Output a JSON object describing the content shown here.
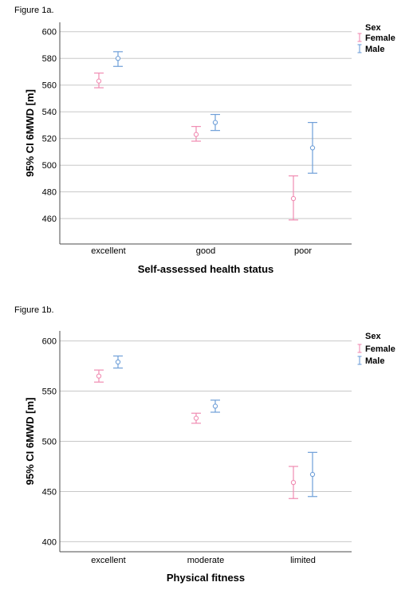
{
  "chart_data": [
    {
      "type": "errorbar",
      "figure_label": "Figure 1a.",
      "xlabel": "Self-assessed health status",
      "ylabel": "95% CI 6MWD [m]",
      "ylim": [
        441,
        607
      ],
      "yticks": [
        460,
        480,
        500,
        520,
        540,
        560,
        580,
        600
      ],
      "categories": [
        "excellent",
        "good",
        "poor"
      ],
      "legend_title": "Sex",
      "legend_position": "right",
      "grid": true,
      "series": [
        {
          "name": "Female",
          "color": "#f08cb2",
          "mean": [
            563,
            523,
            475
          ],
          "lower": [
            558,
            518,
            459
          ],
          "upper": [
            569,
            529,
            492
          ]
        },
        {
          "name": "Male",
          "color": "#6f9fd8",
          "mean": [
            580,
            532,
            513
          ],
          "lower": [
            574,
            526,
            494
          ],
          "upper": [
            585,
            538,
            532
          ]
        }
      ]
    },
    {
      "type": "errorbar",
      "figure_label": "Figure 1b.",
      "xlabel": "Physical fitness",
      "ylabel": "95% CI 6MWD [m]",
      "ylim": [
        390,
        610
      ],
      "yticks": [
        400,
        450,
        500,
        550,
        600
      ],
      "categories": [
        "excellent",
        "moderate",
        "limited"
      ],
      "legend_title": "Sex",
      "legend_position": "right",
      "grid": true,
      "series": [
        {
          "name": "Female",
          "color": "#f08cb2",
          "mean": [
            565,
            523,
            459
          ],
          "lower": [
            559,
            518,
            443
          ],
          "upper": [
            571,
            528,
            475
          ]
        },
        {
          "name": "Male",
          "color": "#6f9fd8",
          "mean": [
            579,
            535,
            467
          ],
          "lower": [
            573,
            529,
            445
          ],
          "upper": [
            585,
            541,
            489
          ]
        }
      ]
    }
  ]
}
